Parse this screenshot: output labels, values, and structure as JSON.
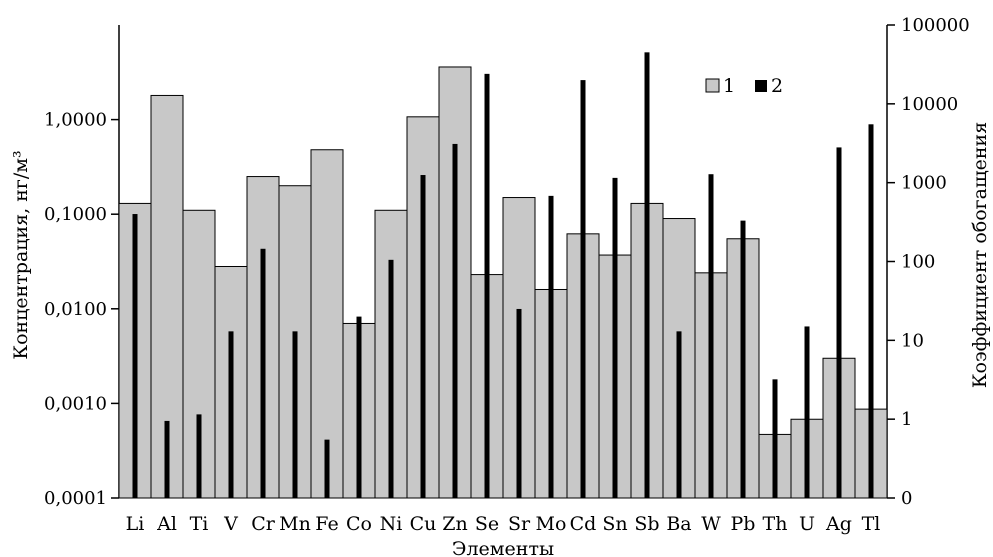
{
  "chart_data": {
    "type": "bar",
    "title": "",
    "xlabel": "Элементы",
    "ylabel_left": "Концентрация, нг/м³",
    "ylabel_right": "Коэффициент обогащения",
    "categories": [
      "Li",
      "Al",
      "Ti",
      "V",
      "Cr",
      "Mn",
      "Fe",
      "Co",
      "Ni",
      "Cu",
      "Zn",
      "Se",
      "Sr",
      "Mo",
      "Cd",
      "Sn",
      "Sb",
      "Ba",
      "W",
      "Pb",
      "Th",
      "U",
      "Ag",
      "Tl"
    ],
    "left_axis": {
      "scale": "log",
      "ylim": [
        0.0001,
        10
      ],
      "ticks": [
        0.0001,
        0.001,
        0.01,
        0.1,
        1
      ],
      "tick_labels": [
        "0,0001",
        "0,0010",
        "0,0100",
        "0,1000",
        "1,0000"
      ]
    },
    "right_axis": {
      "scale": "log",
      "ylim": [
        0.1,
        100000
      ],
      "ticks": [
        0.1,
        1,
        10,
        100,
        1000,
        10000,
        100000
      ],
      "tick_labels": [
        "0",
        "1",
        "10",
        "100",
        "1000",
        "10000",
        "100000"
      ]
    },
    "series": [
      {
        "name": "1",
        "axis": "left",
        "color": "#c8c8c8",
        "values": [
          0.13,
          1.8,
          0.11,
          0.028,
          0.25,
          0.2,
          0.48,
          0.007,
          0.11,
          1.07,
          3.6,
          0.023,
          0.15,
          0.016,
          0.062,
          0.037,
          0.13,
          0.09,
          0.024,
          0.055,
          0.00047,
          0.00068,
          0.003,
          0.00087
        ]
      },
      {
        "name": "2",
        "axis": "right",
        "color": "#000000",
        "values": [
          400,
          0.95,
          1.15,
          13,
          145,
          13,
          0.55,
          20,
          105,
          1250,
          3100,
          24000,
          25,
          680,
          20000,
          1150,
          45000,
          13,
          1280,
          330,
          3.2,
          15,
          2800,
          5500
        ]
      }
    ],
    "legend": {
      "position": "top-right",
      "entries": [
        "1",
        "2"
      ]
    }
  }
}
